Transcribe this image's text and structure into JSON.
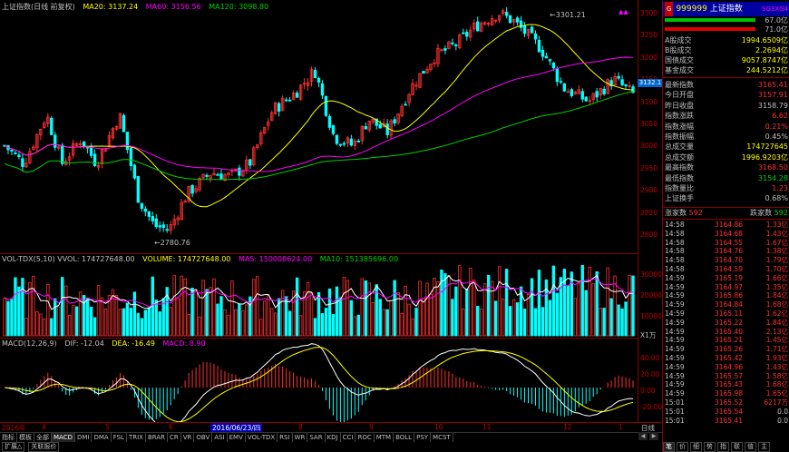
{
  "title_bar": {
    "name": "上证指数(日线 前复权)",
    "ma20": "MA20: 3137.24",
    "ma60": "MA60: 3156.56",
    "ma120": "MA120: 3098.80"
  },
  "price_axis": {
    "ticks": [
      "3300",
      "3250",
      "3200",
      "3150",
      "3100",
      "3050",
      "3000",
      "2950",
      "2900",
      "2850",
      "2800"
    ],
    "current_tag": "3132.1"
  },
  "annotations": {
    "high": "3301.21",
    "low": "2780.76"
  },
  "volume_header": {
    "name": "VOL-TDX(5,10) VVOL: 174727648.00",
    "volume": "VOLUME: 174727648.00",
    "ma5": "MA5: 150008624.00",
    "ma10": "MA10: 151385696.00"
  },
  "volume_axis": {
    "ticks": [
      "30000",
      "20000",
      "10000"
    ],
    "unit": "X1万"
  },
  "macd_header": {
    "name": "MACD(12,26,9)",
    "dif": "DIF: -12.04",
    "dea": "DEA: -16.49",
    "macd": "MACD: 8.90"
  },
  "macd_axis": {
    "ticks": [
      "40.00",
      "20.00",
      "0.00",
      "-20.00"
    ]
  },
  "month_bar": {
    "start": "2016年",
    "months": [
      "4",
      "5",
      "6",
      "7",
      "8",
      "9",
      "10",
      "11",
      "12",
      "1"
    ],
    "cursor_date": "2016/06/23/四",
    "period": "日线"
  },
  "indicator_tabs": [
    "指标",
    "模板",
    "全部",
    "MACD",
    "DMI",
    "DMA",
    "FSL",
    "TRIX",
    "BRAR",
    "CR",
    "VR",
    "OBV",
    "ASI",
    "EMV",
    "VOL-TDX",
    "RSI",
    "WR",
    "SAR",
    "KDJ",
    "CCI",
    "ROC",
    "MTM",
    "BOLL",
    "PSY",
    "MCST"
  ],
  "bottom_tabs": [
    "扩展△",
    "关联报价"
  ],
  "right_panel": {
    "code": "999999",
    "name": "上证指数",
    "tag": "SG3XG4",
    "ratio_top": "67.0亿",
    "ratio_bottom": "71.0亿",
    "stats": [
      {
        "label": "A股成交",
        "value": "1994.6509亿"
      },
      {
        "label": "B股成交",
        "value": "2.2694亿"
      },
      {
        "label": "国债成交",
        "value": "9057.8747亿"
      },
      {
        "label": "基金成交",
        "value": "244.5212亿"
      }
    ],
    "quote": [
      {
        "label": "最新指数",
        "value": "3165.41",
        "color": "red"
      },
      {
        "label": "今日开盘",
        "value": "3157.91",
        "color": "red"
      },
      {
        "label": "昨日收盘",
        "value": "3158.79",
        "color": "lbl"
      },
      {
        "label": "指数涨跌",
        "value": "6.62",
        "color": "red"
      },
      {
        "label": "指数涨幅",
        "value": "0.21%",
        "color": "red"
      },
      {
        "label": "指数振幅",
        "value": "0.45%",
        "color": "lbl"
      },
      {
        "label": "总成交量",
        "value": "174727645",
        "color": "yel"
      },
      {
        "label": "总成交额",
        "value": "1996.9203亿",
        "color": "yel"
      },
      {
        "label": "最高指数",
        "value": "3168.50",
        "color": "red"
      },
      {
        "label": "最低指数",
        "value": "3154.28",
        "color": "grn"
      },
      {
        "label": "指数量比",
        "value": "1.23",
        "color": "red"
      },
      {
        "label": "上证换手",
        "value": "0.68%",
        "color": "lbl"
      }
    ],
    "updown": {
      "up_label": "涨家数",
      "up_value": "592",
      "down_label": "跌家数",
      "down_value": "592"
    },
    "ticks": [
      [
        "14:58",
        "3164.86",
        "1.33亿"
      ],
      [
        "14:58",
        "3164.68",
        "1.43亿"
      ],
      [
        "14:58",
        "3164.55",
        "1.67亿"
      ],
      [
        "14:58",
        "3164.76",
        "1.38亿"
      ],
      [
        "14:58",
        "3164.70",
        "1.79亿"
      ],
      [
        "14:58",
        "3164.59",
        "1.70亿"
      ],
      [
        "14:59",
        "3165.19",
        "1.66亿"
      ],
      [
        "14:59",
        "3164.97",
        "1.35亿"
      ],
      [
        "14:59",
        "3165.86",
        "1.84亿"
      ],
      [
        "14:59",
        "3164.84",
        "1.68亿"
      ],
      [
        "14:59",
        "3165.11",
        "1.62亿"
      ],
      [
        "14:59",
        "3165.22",
        "1.84亿"
      ],
      [
        "14:59",
        "3165.40",
        "2.13亿"
      ],
      [
        "14:59",
        "3165.21",
        "1.45亿"
      ],
      [
        "14:59",
        "3165.26",
        "1.71亿"
      ],
      [
        "14:59",
        "3165.42",
        "1.93亿"
      ],
      [
        "14:59",
        "3164.96",
        "1.43亿"
      ],
      [
        "14:59",
        "3165.57",
        "1.58亿"
      ],
      [
        "14:59",
        "3165.43",
        "1.68亿"
      ],
      [
        "14:59",
        "3165.98",
        "1.65亿"
      ],
      [
        "15:01",
        "3165.52",
        "6217万"
      ],
      [
        "15:01",
        "3165.54",
        "0.0"
      ],
      [
        "15:01",
        "3165.41",
        "0.0"
      ]
    ],
    "bottom_tabs": [
      "笔",
      "价",
      "细",
      "势",
      "指",
      "联",
      "值",
      "主"
    ]
  }
}
